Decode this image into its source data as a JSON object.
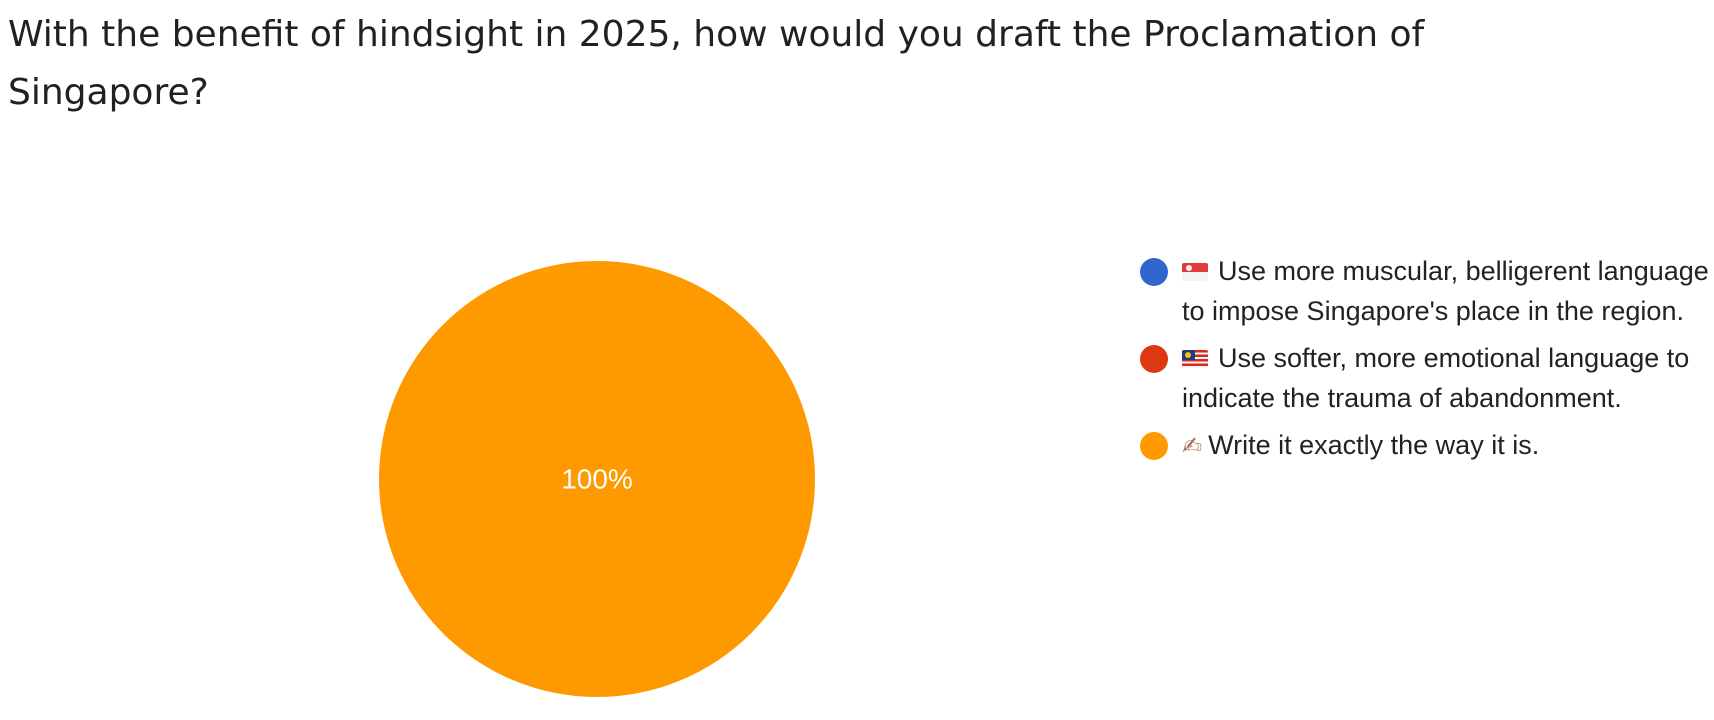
{
  "question": "With the benefit of hindsight in 2025, how would you draft the Proclamation of Singapore?",
  "chart_data": {
    "type": "pie",
    "title": "With the benefit of hindsight in 2025, how would you draft the Proclamation of Singapore?",
    "legend_position": "right",
    "slices": [
      {
        "icon": "singapore-flag-icon",
        "label": "Use more muscular, belligerent language to impose Singapore's place in the region.",
        "value": 0,
        "color": "#3366cc"
      },
      {
        "icon": "malaysia-flag-icon",
        "label": "Use softer, more emotional language to indicate the trauma of abandonment.",
        "value": 0,
        "color": "#dc3912"
      },
      {
        "icon": "writing-hand-icon",
        "label": "Write it exactly the way it is.",
        "value": 100,
        "color": "#ff9900"
      }
    ],
    "data_labels": [
      "",
      "",
      "100%"
    ]
  }
}
